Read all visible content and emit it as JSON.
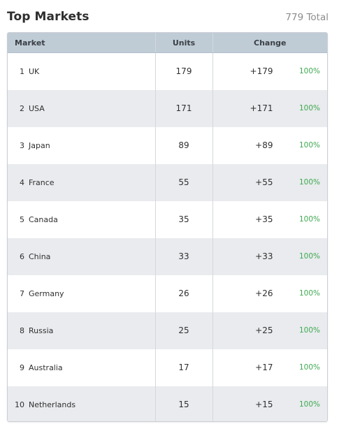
{
  "header": {
    "title": "Top Markets",
    "total": "779 Total"
  },
  "table": {
    "columns": {
      "market": "Market",
      "units": "Units",
      "change": "Change"
    },
    "rows": [
      {
        "rank": "1",
        "market": "UK",
        "units": "179",
        "change": "+179",
        "pct": "100%"
      },
      {
        "rank": "2",
        "market": "USA",
        "units": "171",
        "change": "+171",
        "pct": "100%"
      },
      {
        "rank": "3",
        "market": "Japan",
        "units": "89",
        "change": "+89",
        "pct": "100%"
      },
      {
        "rank": "4",
        "market": "France",
        "units": "55",
        "change": "+55",
        "pct": "100%"
      },
      {
        "rank": "5",
        "market": "Canada",
        "units": "35",
        "change": "+35",
        "pct": "100%"
      },
      {
        "rank": "6",
        "market": "China",
        "units": "33",
        "change": "+33",
        "pct": "100%"
      },
      {
        "rank": "7",
        "market": "Germany",
        "units": "26",
        "change": "+26",
        "pct": "100%"
      },
      {
        "rank": "8",
        "market": "Russia",
        "units": "25",
        "change": "+25",
        "pct": "100%"
      },
      {
        "rank": "9",
        "market": "Australia",
        "units": "17",
        "change": "+17",
        "pct": "100%"
      },
      {
        "rank": "10",
        "market": "Netherlands",
        "units": "15",
        "change": "+15",
        "pct": "100%"
      }
    ]
  },
  "colors": {
    "header_bg": "#bfccd6",
    "row_alt": "#e9ebee",
    "positive": "#3fa951"
  }
}
